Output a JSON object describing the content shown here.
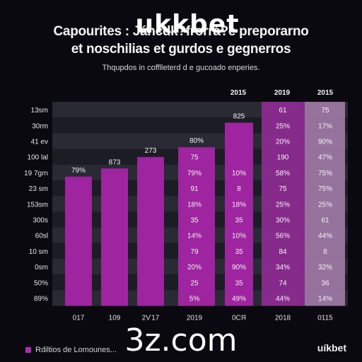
{
  "header": {
    "title_line1": "Capourites : Jáncdk?frorrá?e preporarno",
    "title_line2": "et noschilias et gurdos e gegnerros",
    "overlay": "ukkbet",
    "subtitle": "Thqupdos in cofflleterd d e gucoado enperies."
  },
  "legend": {
    "label": "Rdiltios de Lomounes...",
    "color": "#b22ab8"
  },
  "watermark": "3z.com",
  "brand": "uíkbet",
  "chart_data": {
    "type": "bar",
    "title": "",
    "xlabel": "",
    "ylabel": "",
    "row_labels": [
      "13sm",
      "30rm",
      "41 ev",
      "100 lal",
      "19 7grn",
      "23 sm",
      "153sm",
      "300s",
      "60sl",
      "10 sm",
      "0sm",
      "50%",
      "89%"
    ],
    "bar_categories": [
      "017",
      "109",
      "2Ѵ17",
      "2019",
      "0СЯ"
    ],
    "bars": [
      {
        "category": "017",
        "label": "79%",
        "value": 79
      },
      {
        "category": "109",
        "label": "873",
        "value": 84
      },
      {
        "category": "2Ѵ17",
        "label": "273",
        "value": 91
      },
      {
        "category": "2019",
        "label": "80%",
        "value": 97
      },
      {
        "category": "0СЯ",
        "label": "825",
        "value": 112
      }
    ],
    "ylim": [
      0,
      120
    ],
    "table_columns": [
      {
        "header": "",
        "footer": "2019",
        "cells": [
          "",
          "",
          "",
          "",
          "",
          "",
          "",
          "",
          "",
          "",
          "",
          "",
          ""
        ]
      },
      {
        "header": "",
        "footer": "0СЯ",
        "cells": [
          "",
          "",
          "",
          "",
          "",
          "",
          "",
          "",
          "",
          "",
          "",
          "",
          ""
        ]
      },
      {
        "header": "2015",
        "footer": "",
        "cells": [
          "",
          "",
          "",
          "",
          "",
          "",
          "",
          "",
          "",
          "",
          "",
          "",
          ""
        ]
      }
    ],
    "overlay_columns": [
      {
        "cells": [
          "",
          "",
          "",
          "75",
          "79%",
          "91",
          "18%",
          "35",
          "14%",
          "79",
          "20%",
          "25",
          "5%"
        ]
      },
      {
        "cells": [
          "",
          "",
          "",
          "",
          "10%",
          "8",
          "18%",
          "35",
          "10%",
          "35",
          "90%",
          "35",
          "49%"
        ]
      }
    ],
    "right_columns": [
      {
        "header": "2015",
        "footer": "2018",
        "cells": [
          "61",
          "25%",
          "20%",
          "190",
          "58%",
          "75",
          "25%",
          "30%",
          "56%",
          "84",
          "34%",
          "74",
          "44%"
        ]
      },
      {
        "header": "2019",
        "footer": "",
        "cells": [
          "",
          "",
          "",
          "",
          "",
          "",
          "",
          "",
          "",
          "",
          "",
          "",
          ""
        ]
      },
      {
        "header": "2015",
        "footer": "0115",
        "cells": [
          "75",
          "17%",
          "90%",
          "47%",
          "75%",
          "75%",
          "25%",
          "61",
          "44%",
          "8",
          "32%",
          "36",
          "14%"
        ]
      }
    ]
  }
}
